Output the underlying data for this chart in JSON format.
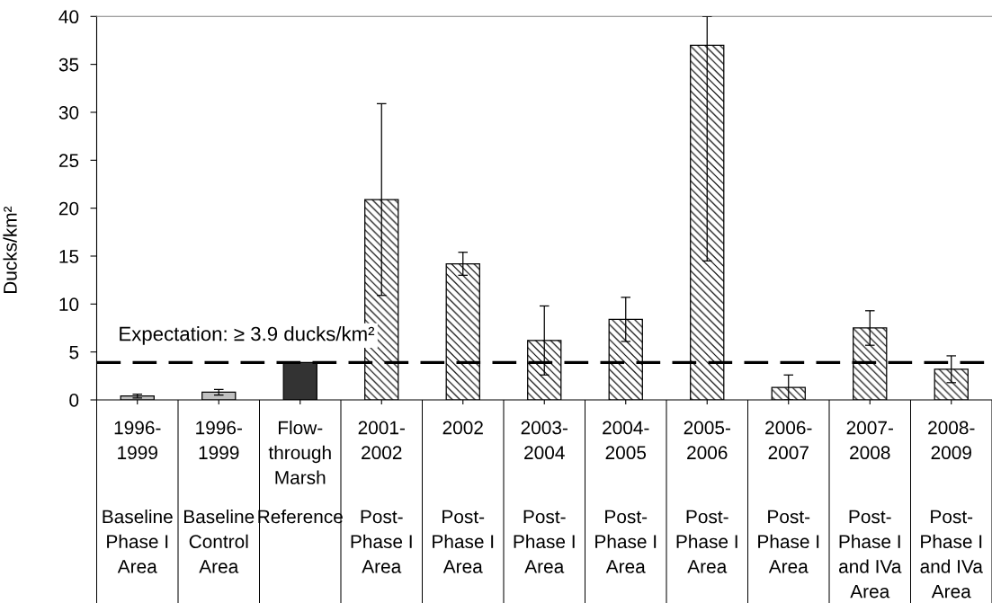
{
  "chart_data": {
    "type": "bar",
    "ylabel": "Ducks/km²",
    "categories": [
      "1996-\n1999\n\nBaseline\nPhase I\nArea",
      "1996-\n1999\n\nBaseline\nControl\nArea",
      "Flow-\nthrough\nMarsh\n\nReference",
      "2001-\n2002\n\nPost-\nPhase I\nArea",
      "2002\n\nPost-\nPhase I\nArea",
      "2003-\n2004\n\nPost-\nPhase I\nArea",
      "2004-\n2005\n\nPost-\nPhase I\nArea",
      "2005-\n2006\n\nPost-\nPhase I\nArea",
      "2006-\n2007\n\nPost-\nPhase I\nArea",
      "2007-\n2008\n\nPost-\nPhase I\nand IVa\nArea",
      "2008-\n2009\n\nPost-\nPhase I\nand IVa\nArea"
    ],
    "series": [
      {
        "values": [
          0.4,
          0.8,
          3.9,
          null,
          null,
          null,
          null,
          null,
          null,
          null,
          null
        ],
        "colors": [
          "#c0c0c0",
          "#c0c0c0",
          "#333333",
          null,
          null,
          null,
          null,
          null,
          null,
          null,
          null
        ],
        "errors": [
          0.2,
          0.3,
          null,
          null,
          null,
          null,
          null,
          null,
          null,
          null,
          null
        ]
      },
      {
        "color": "#000000",
        "values": [
          null,
          null,
          null,
          20.9,
          14.2,
          6.2,
          8.4,
          37.0,
          1.3,
          7.5,
          3.2
        ],
        "errors": [
          null,
          null,
          null,
          10,
          1.2,
          3.6,
          2.3,
          [
            14.5,
            40
          ],
          1.3,
          1.8,
          1.4
        ]
      }
    ],
    "ylim": [
      0,
      40
    ],
    "yticks": [
      0,
      5,
      10,
      15,
      20,
      25,
      30,
      35,
      40
    ],
    "ref_lines": [
      {
        "axis": "y",
        "value": 3.9,
        "label": "Expectation: ≥ 3.9 ducks/km²",
        "color": "#000000",
        "line_style": "dashed"
      }
    ]
  }
}
